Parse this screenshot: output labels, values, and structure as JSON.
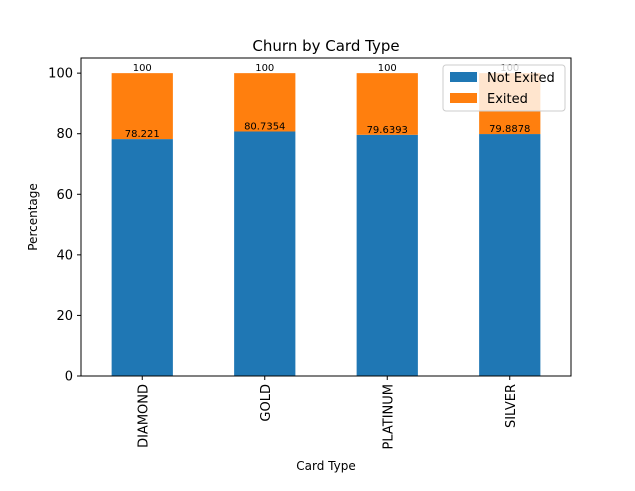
{
  "chart_data": {
    "type": "bar",
    "stacked": true,
    "title": "Churn by Card Type",
    "xlabel": "Card Type",
    "ylabel": "Percentage",
    "categories": [
      "DIAMOND",
      "GOLD",
      "PLATINUM",
      "SILVER"
    ],
    "ylim": [
      0,
      105
    ],
    "yticks": [
      0,
      20,
      40,
      60,
      80,
      100
    ],
    "series": [
      {
        "name": "Not Exited",
        "values": [
          78.221,
          80.7354,
          79.6393,
          79.8878
        ],
        "color": "#1f77b4"
      },
      {
        "name": "Exited",
        "values": [
          21.779,
          19.2646,
          20.3607,
          20.1122
        ],
        "color": "#ff7f0e"
      }
    ],
    "data_labels": {
      "not_exited": [
        "78.221",
        "80.7354",
        "79.6393",
        "79.8878"
      ],
      "total": [
        "100",
        "100",
        "100",
        "100"
      ]
    },
    "legend": {
      "position": "top-right"
    },
    "grid": false
  }
}
